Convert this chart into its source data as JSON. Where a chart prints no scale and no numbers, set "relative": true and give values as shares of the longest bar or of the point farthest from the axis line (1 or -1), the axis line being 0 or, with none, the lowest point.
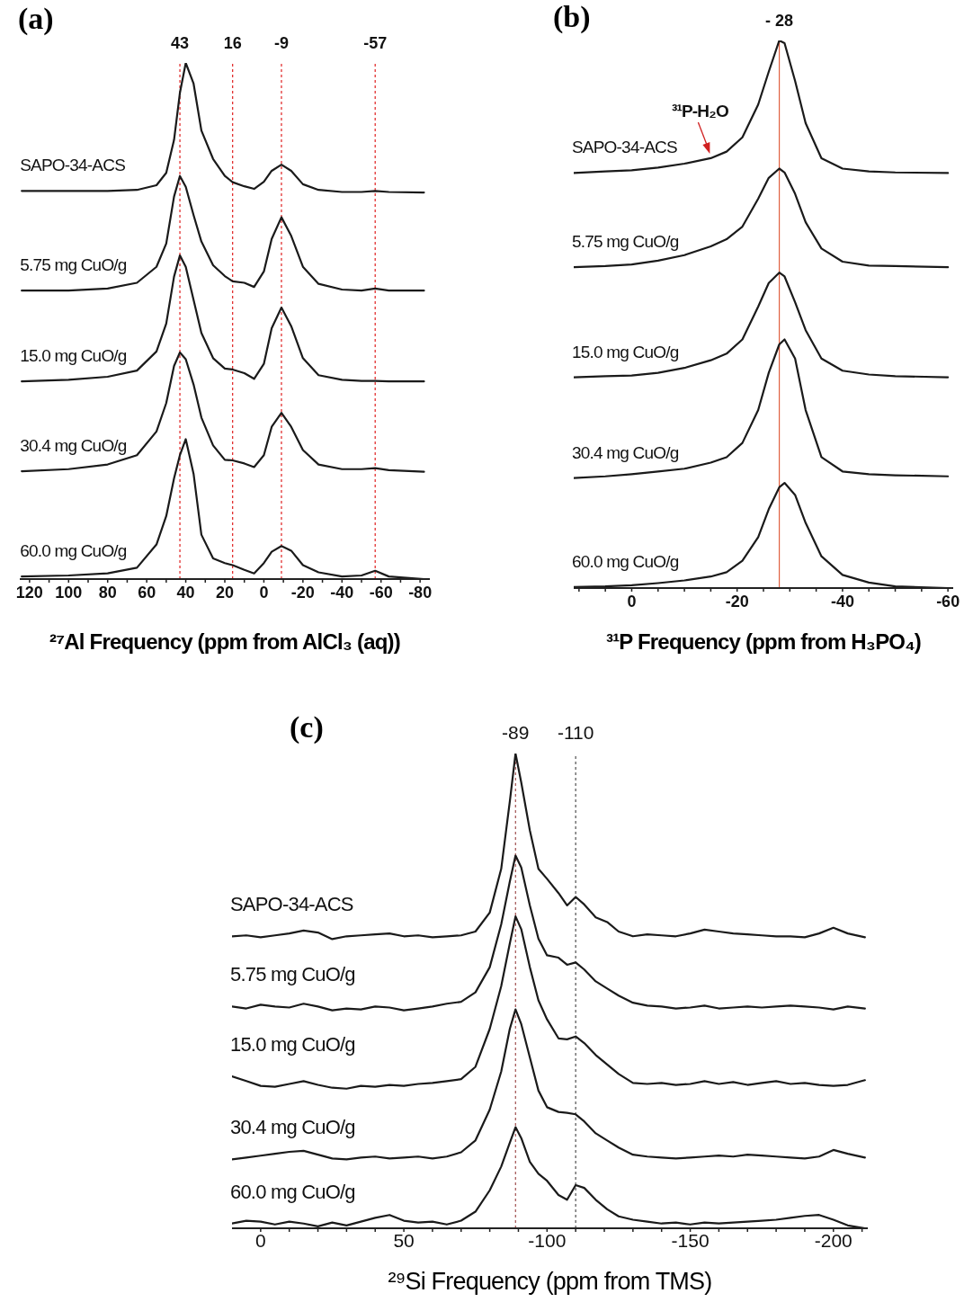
{
  "chart_data": [
    {
      "type": "line",
      "title": "(a)",
      "xlabel": "²⁷Al Frequency (ppm from AlCl₃ (aq))",
      "relative": true,
      "marker": "none",
      "line_style": "solid",
      "x": [
        124,
        100,
        80,
        65,
        55,
        50,
        46,
        43,
        40,
        36,
        32,
        26,
        20,
        16,
        10,
        5,
        0,
        -4,
        -9,
        -14,
        -20,
        -28,
        -40,
        -50,
        -57,
        -64,
        -82
      ],
      "xlim": [
        125,
        -85
      ],
      "xticks": [
        120,
        {
          "value": 110,
          "label": null
        },
        100,
        {
          "value": 90,
          "label": null
        },
        80,
        {
          "value": 70,
          "label": null
        },
        60,
        {
          "value": 50,
          "label": null
        },
        40,
        {
          "value": 30,
          "label": null
        },
        20,
        {
          "value": 10,
          "label": null
        },
        0,
        {
          "value": -10,
          "label": null
        },
        -20,
        {
          "value": -30,
          "label": null
        },
        -40,
        {
          "value": -50,
          "label": null
        },
        -60,
        {
          "value": -70,
          "label": null
        },
        -80
      ],
      "series": [
        {
          "name": "SAPO-34-ACS",
          "color": "#1a1a1a",
          "values": [
            0.752,
            0.752,
            0.752,
            0.754,
            0.763,
            0.787,
            0.851,
            0.942,
            1.0,
            0.96,
            0.869,
            0.814,
            0.781,
            0.769,
            0.761,
            0.756,
            0.77,
            0.791,
            0.803,
            0.791,
            0.765,
            0.754,
            0.75,
            0.75,
            0.752,
            0.75,
            0.749
          ]
        },
        {
          "name": "5.75 mg CuO/g",
          "color": "#1a1a1a",
          "values": [
            0.559,
            0.559,
            0.563,
            0.574,
            0.605,
            0.65,
            0.741,
            0.781,
            0.76,
            0.705,
            0.654,
            0.608,
            0.587,
            0.577,
            0.574,
            0.566,
            0.596,
            0.659,
            0.701,
            0.665,
            0.605,
            0.572,
            0.561,
            0.559,
            0.563,
            0.559,
            0.559
          ]
        },
        {
          "name": "15.0 mg CuO/g",
          "color": "#1a1a1a",
          "values": [
            0.383,
            0.386,
            0.392,
            0.404,
            0.441,
            0.495,
            0.586,
            0.627,
            0.605,
            0.541,
            0.477,
            0.428,
            0.408,
            0.406,
            0.399,
            0.388,
            0.417,
            0.486,
            0.526,
            0.49,
            0.428,
            0.395,
            0.386,
            0.384,
            0.384,
            0.383,
            0.383
          ]
        },
        {
          "name": "30.4 mg CuO/g",
          "color": "#1a1a1a",
          "values": [
            0.209,
            0.213,
            0.222,
            0.24,
            0.286,
            0.341,
            0.413,
            0.439,
            0.426,
            0.377,
            0.313,
            0.259,
            0.231,
            0.23,
            0.224,
            0.217,
            0.24,
            0.295,
            0.322,
            0.295,
            0.25,
            0.222,
            0.213,
            0.213,
            0.215,
            0.211,
            0.208
          ]
        },
        {
          "name": "60.0 mg CuO/g",
          "color": "#1a1a1a",
          "values": [
            0.005,
            0.007,
            0.011,
            0.022,
            0.067,
            0.122,
            0.195,
            0.24,
            0.271,
            0.204,
            0.086,
            0.04,
            0.031,
            0.027,
            0.018,
            0.011,
            0.031,
            0.053,
            0.064,
            0.055,
            0.027,
            0.013,
            0.005,
            0.007,
            0.016,
            0.005,
            0
          ]
        }
      ],
      "ref_lines": [
        {
          "axis": "x",
          "value": 43,
          "label": "43",
          "color": "#e02020",
          "line_style": "dotted"
        },
        {
          "axis": "x",
          "value": 16,
          "label": "16",
          "color": "#e02020",
          "line_style": "dotted"
        },
        {
          "axis": "x",
          "value": -9,
          "label": "-9",
          "color": "#e02020",
          "line_style": "dotted"
        },
        {
          "axis": "x",
          "value": -57,
          "label": "-57",
          "color": "#e02020",
          "line_style": "dotted"
        }
      ]
    },
    {
      "type": "line",
      "title": "(b)",
      "xlabel": "³¹P Frequency (ppm from H₃PO₄)",
      "relative": true,
      "marker": "none",
      "line_style": "solid",
      "x": [
        11,
        5,
        0,
        -5,
        -10,
        -15,
        -18,
        -21,
        -24,
        -26,
        -28,
        -29,
        -31,
        -33,
        -36,
        -40,
        -45,
        -50,
        -60
      ],
      "xlim": [
        11,
        -61
      ],
      "xticks": [
        {
          "value": 10,
          "label": null
        },
        {
          "value": 5,
          "label": null
        },
        0,
        {
          "value": -5,
          "label": null
        },
        {
          "value": -10,
          "label": null
        },
        {
          "value": -15,
          "label": null
        },
        -20,
        {
          "value": -25,
          "label": null
        },
        {
          "value": -30,
          "label": null
        },
        {
          "value": -35,
          "label": null
        },
        -40,
        {
          "value": -45,
          "label": null
        },
        {
          "value": -50,
          "label": null
        },
        {
          "value": -55,
          "label": null
        },
        -60
      ],
      "series": [
        {
          "name": "SAPO-34-ACS",
          "color": "#1a1a1a",
          "values": [
            0.758,
            0.761,
            0.763,
            0.768,
            0.775,
            0.785,
            0.797,
            0.823,
            0.883,
            0.943,
            1.0,
            0.995,
            0.926,
            0.849,
            0.785,
            0.766,
            0.761,
            0.759,
            0.758
          ]
        },
        {
          "name": "5.75 mg CuO/g",
          "color": "#1a1a1a",
          "values": [
            0.586,
            0.588,
            0.591,
            0.598,
            0.608,
            0.624,
            0.637,
            0.66,
            0.711,
            0.749,
            0.766,
            0.759,
            0.72,
            0.668,
            0.62,
            0.596,
            0.589,
            0.588,
            0.586
          ]
        },
        {
          "name": "15.0 mg CuO/g",
          "color": "#1a1a1a",
          "values": [
            0.385,
            0.387,
            0.388,
            0.393,
            0.402,
            0.416,
            0.428,
            0.454,
            0.514,
            0.557,
            0.576,
            0.569,
            0.522,
            0.471,
            0.419,
            0.397,
            0.39,
            0.387,
            0.385
          ]
        },
        {
          "name": "30.4 mg CuO/g",
          "color": "#1a1a1a",
          "values": [
            0.201,
            0.204,
            0.208,
            0.213,
            0.218,
            0.229,
            0.239,
            0.265,
            0.325,
            0.393,
            0.445,
            0.454,
            0.419,
            0.325,
            0.239,
            0.213,
            0.208,
            0.206,
            0.204
          ]
        },
        {
          "name": "60.0 mg CuO/g",
          "color": "#1a1a1a",
          "values": [
            0.002,
            0.003,
            0.005,
            0.009,
            0.014,
            0.021,
            0.029,
            0.05,
            0.093,
            0.144,
            0.184,
            0.192,
            0.17,
            0.119,
            0.058,
            0.024,
            0.01,
            0.003,
            0
          ]
        }
      ],
      "ref_lines": [
        {
          "axis": "x",
          "value": -28,
          "label": "- 28",
          "color": "#e06040",
          "line_style": "solid"
        }
      ],
      "annotations": [
        {
          "text": "³¹P-H₂O",
          "x": -15,
          "y": 0.785
        }
      ]
    },
    {
      "type": "line",
      "title": "(c)",
      "xlabel": "²⁹Si Frequency (ppm from TMS)",
      "relative": true,
      "marker": "none",
      "line_style": "solid",
      "x": [
        10,
        5,
        0,
        -5,
        -10,
        -15,
        -20,
        -25,
        -30,
        -35,
        -40,
        -45,
        -50,
        -55,
        -60,
        -65,
        -70,
        -75,
        -80,
        -84,
        -87,
        -89,
        -91,
        -94,
        -97,
        -100,
        -104,
        -107,
        -110,
        -113,
        -117,
        -121,
        -125,
        -130,
        -135,
        -140,
        -145,
        -150,
        -155,
        -160,
        -165,
        -170,
        -175,
        -180,
        -185,
        -190,
        -195,
        -200,
        -205,
        -211
      ],
      "xlim": [
        10,
        -212
      ],
      "xticks": [
        0,
        {
          "value": -10,
          "label": null
        },
        {
          "value": -20,
          "label": null
        },
        {
          "value": -30,
          "label": null
        },
        {
          "value": -40,
          "label": null
        },
        {
          "value": -50,
          "label": "50"
        },
        {
          "value": -60,
          "label": null
        },
        {
          "value": -70,
          "label": null
        },
        {
          "value": -80,
          "label": null
        },
        {
          "value": -90,
          "label": null
        },
        -100,
        {
          "value": -110,
          "label": null
        },
        {
          "value": -120,
          "label": null
        },
        {
          "value": -130,
          "label": null
        },
        {
          "value": -140,
          "label": null
        },
        -150,
        {
          "value": -160,
          "label": null
        },
        {
          "value": -170,
          "label": null
        },
        {
          "value": -180,
          "label": null
        },
        {
          "value": -190,
          "label": null
        },
        -200,
        {
          "value": -210,
          "label": null
        }
      ],
      "series": [
        {
          "name": "SAPO-34-ACS",
          "color": "#1a1a1a",
          "values": [
            0.615,
            0.617,
            0.613,
            0.617,
            0.621,
            0.627,
            0.623,
            0.609,
            0.615,
            0.617,
            0.619,
            0.621,
            0.615,
            0.617,
            0.613,
            0.615,
            0.617,
            0.625,
            0.665,
            0.757,
            0.899,
            1.0,
            0.939,
            0.838,
            0.757,
            0.736,
            0.706,
            0.68,
            0.698,
            0.682,
            0.655,
            0.645,
            0.625,
            0.615,
            0.619,
            0.617,
            0.615,
            0.621,
            0.629,
            0.625,
            0.621,
            0.619,
            0.617,
            0.615,
            0.615,
            0.613,
            0.621,
            0.633,
            0.621,
            0.613
          ]
        },
        {
          "name": "5.75 mg CuO/g",
          "color": "#1a1a1a",
          "values": [
            0.467,
            0.463,
            0.471,
            0.467,
            0.465,
            0.473,
            0.467,
            0.459,
            0.463,
            0.461,
            0.467,
            0.465,
            0.459,
            0.463,
            0.467,
            0.473,
            0.477,
            0.497,
            0.55,
            0.64,
            0.73,
            0.785,
            0.76,
            0.68,
            0.61,
            0.575,
            0.57,
            0.555,
            0.56,
            0.545,
            0.52,
            0.505,
            0.49,
            0.475,
            0.469,
            0.467,
            0.463,
            0.465,
            0.469,
            0.463,
            0.465,
            0.467,
            0.465,
            0.467,
            0.469,
            0.467,
            0.465,
            0.461,
            0.467,
            0.463
          ]
        },
        {
          "name": "15.0 mg CuO/g",
          "color": "#1a1a1a",
          "values": [
            0.32,
            0.31,
            0.3,
            0.298,
            0.304,
            0.31,
            0.302,
            0.296,
            0.294,
            0.3,
            0.298,
            0.302,
            0.3,
            0.304,
            0.306,
            0.31,
            0.314,
            0.34,
            0.42,
            0.51,
            0.6,
            0.657,
            0.63,
            0.55,
            0.48,
            0.44,
            0.4,
            0.398,
            0.404,
            0.39,
            0.365,
            0.345,
            0.325,
            0.306,
            0.304,
            0.306,
            0.302,
            0.304,
            0.31,
            0.304,
            0.308,
            0.302,
            0.306,
            0.31,
            0.304,
            0.306,
            0.302,
            0.3,
            0.302,
            0.312
          ]
        },
        {
          "name": "30.4 mg CuO/g",
          "color": "#1a1a1a",
          "values": [
            0.145,
            0.149,
            0.153,
            0.157,
            0.161,
            0.163,
            0.155,
            0.147,
            0.145,
            0.149,
            0.151,
            0.147,
            0.149,
            0.151,
            0.147,
            0.151,
            0.16,
            0.185,
            0.25,
            0.33,
            0.42,
            0.461,
            0.43,
            0.36,
            0.29,
            0.255,
            0.245,
            0.243,
            0.24,
            0.225,
            0.2,
            0.185,
            0.17,
            0.155,
            0.151,
            0.149,
            0.147,
            0.149,
            0.151,
            0.153,
            0.151,
            0.155,
            0.153,
            0.151,
            0.149,
            0.147,
            0.151,
            0.165,
            0.157,
            0.149
          ]
        },
        {
          "name": "60.0 mg CuO/g",
          "color": "#1a1a1a",
          "values": [
            0.01,
            0.016,
            0.014,
            0.008,
            0.014,
            0.01,
            0.004,
            0.012,
            0.006,
            0.014,
            0.022,
            0.028,
            0.016,
            0.012,
            0.014,
            0.008,
            0.016,
            0.035,
            0.08,
            0.13,
            0.18,
            0.213,
            0.19,
            0.14,
            0.115,
            0.1,
            0.07,
            0.06,
            0.091,
            0.085,
            0.06,
            0.04,
            0.025,
            0.018,
            0.014,
            0.01,
            0.012,
            0.008,
            0.012,
            0.01,
            0.012,
            0.014,
            0.016,
            0.018,
            0.022,
            0.026,
            0.028,
            0.018,
            0.006,
            0
          ]
        }
      ],
      "ref_lines": [
        {
          "axis": "x",
          "value": -89,
          "label": "-89",
          "color": "#a05050",
          "line_style": "dotted"
        },
        {
          "axis": "x",
          "value": -110,
          "label": "-110",
          "color": "#505050",
          "line_style": "dotted"
        }
      ]
    }
  ]
}
